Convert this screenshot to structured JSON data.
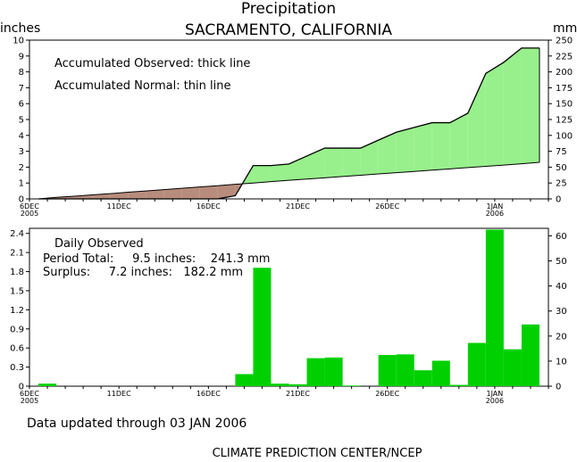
{
  "title": "Precipitation",
  "subtitle": "SACRAMENTO, CALIFORNIA",
  "footer_updated": "Data updated through 03 JAN 2006",
  "footer_credit": "CLIMATE PREDICTION CENTER/NCEP",
  "colors": {
    "surplus_fill": "#98f08c",
    "deficit_fill": "#b78c7c",
    "daily_bar": "#00d000",
    "line": "#000000",
    "background": "#ffffff"
  },
  "chart_data": [
    {
      "type": "area",
      "left_unit": "inches",
      "right_unit": "mm",
      "ylim": [
        0,
        10
      ],
      "y_ticks": [
        "0",
        "1",
        "2",
        "3",
        "4",
        "5",
        "6",
        "7",
        "8",
        "9",
        "10"
      ],
      "y2_ticks": [
        "0",
        "25",
        "50",
        "75",
        "100",
        "125",
        "150",
        "175",
        "200",
        "225",
        "250"
      ],
      "x_ticks": [
        {
          "day": 0,
          "label": "6DEC",
          "sub": "2005"
        },
        {
          "day": 5,
          "label": "11DEC",
          "sub": ""
        },
        {
          "day": 10,
          "label": "16DEC",
          "sub": ""
        },
        {
          "day": 15,
          "label": "21DEC",
          "sub": ""
        },
        {
          "day": 20,
          "label": "26DEC",
          "sub": ""
        },
        {
          "day": 26,
          "label": "1JAN",
          "sub": "2006"
        }
      ],
      "x_days": 29,
      "notes": [
        "Accumulated Observed: thick line",
        "Accumulated Normal: thin line"
      ],
      "series": [
        {
          "name": "Accumulated Observed",
          "values": [
            0.0,
            0.0,
            0.0,
            0.0,
            0.0,
            0.0,
            0.0,
            0.0,
            0.0,
            0.0,
            0.0,
            0.2,
            2.1,
            2.1,
            2.2,
            2.7,
            3.2,
            3.2,
            3.2,
            3.7,
            4.2,
            4.5,
            4.8,
            4.8,
            5.4,
            7.9,
            8.6,
            9.5,
            9.5
          ]
        },
        {
          "name": "Accumulated Normal",
          "values": [
            0.0,
            0.1,
            0.17,
            0.25,
            0.33,
            0.42,
            0.5,
            0.58,
            0.67,
            0.75,
            0.83,
            0.92,
            1.0,
            1.09,
            1.17,
            1.25,
            1.33,
            1.41,
            1.49,
            1.57,
            1.65,
            1.73,
            1.81,
            1.89,
            1.97,
            2.05,
            2.13,
            2.21,
            2.3
          ]
        }
      ]
    },
    {
      "type": "bar",
      "left_unit": "inches",
      "right_unit": "mm",
      "ylim": [
        0,
        2.48
      ],
      "y_ticks": [
        "0",
        "0.3",
        "0.6",
        "0.9",
        "1.2",
        "1.5",
        "1.8",
        "2.1",
        "2.4"
      ],
      "y_tick_values": [
        0,
        0.3,
        0.6,
        0.9,
        1.2,
        1.5,
        1.8,
        2.1,
        2.4
      ],
      "y2_ticks": [
        "0",
        "10",
        "20",
        "30",
        "40",
        "50",
        "60"
      ],
      "x_ticks": [
        {
          "day": 0,
          "label": "6DEC",
          "sub": "2005"
        },
        {
          "day": 5,
          "label": "11DEC",
          "sub": ""
        },
        {
          "day": 10,
          "label": "16DEC",
          "sub": ""
        },
        {
          "day": 15,
          "label": "21DEC",
          "sub": ""
        },
        {
          "day": 20,
          "label": "26DEC",
          "sub": ""
        },
        {
          "day": 26,
          "label": "1JAN",
          "sub": "2006"
        }
      ],
      "x_days": 29,
      "notes": [
        "Daily Observed",
        "Period Total:     9.5 inches:    241.3 mm",
        "Surplus:     7.2 inches:   182.2 mm"
      ],
      "series": [
        {
          "name": "Daily Observed",
          "values": [
            0.04,
            0,
            0,
            0,
            0,
            0,
            0,
            0,
            0,
            0,
            0,
            0.19,
            1.86,
            0.04,
            0.03,
            0.44,
            0.45,
            0.01,
            0,
            0.49,
            0.5,
            0.25,
            0.4,
            0.02,
            0.68,
            2.46,
            0.58,
            0.97,
            0
          ]
        }
      ]
    }
  ]
}
